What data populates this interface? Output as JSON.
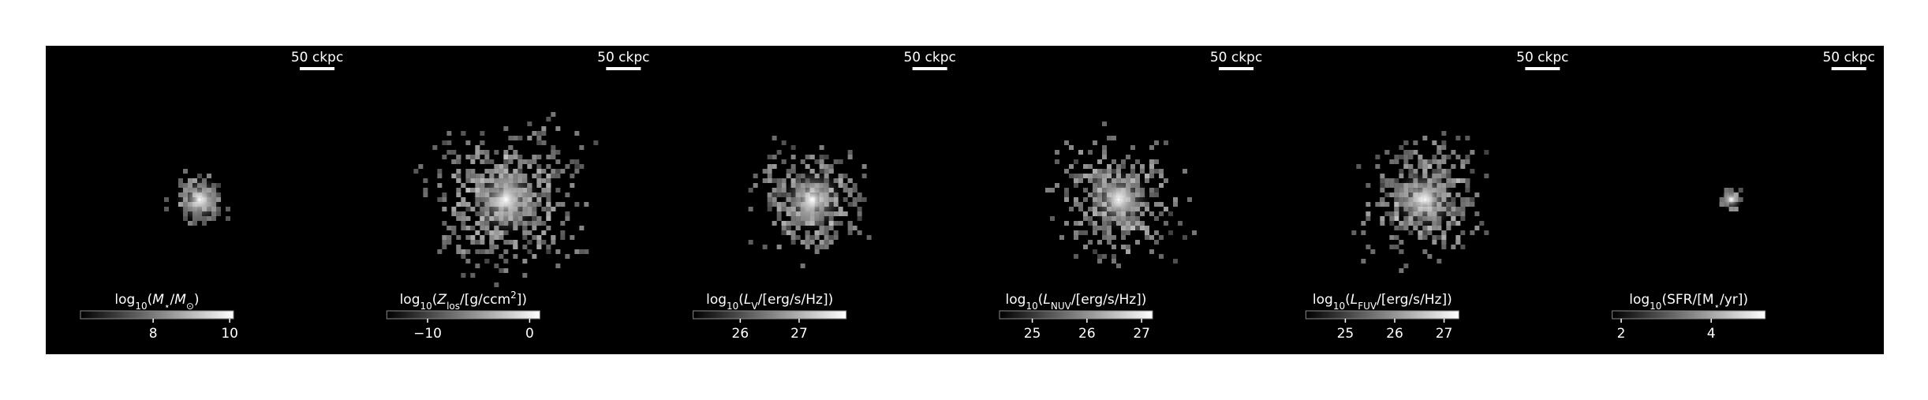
{
  "panels": [
    {
      "scale_label": "50 ckpc",
      "colorbar_label": [
        {
          "t": "log"
        },
        {
          "t": "10",
          "sub": true
        },
        {
          "t": "("
        },
        {
          "t": "M",
          "i": true
        },
        {
          "t": "⋆",
          "sub": true
        },
        {
          "t": "/"
        },
        {
          "t": "M",
          "i": true
        },
        {
          "t": "⊙",
          "sub": true
        },
        {
          "t": ")"
        }
      ],
      "colorbar_lim": [
        6.1,
        10.1
      ],
      "colorbar_ticks": [
        8,
        10
      ]
    },
    {
      "scale_label": "50 ckpc",
      "colorbar_label": [
        {
          "t": "log"
        },
        {
          "t": "10",
          "sub": true
        },
        {
          "t": "("
        },
        {
          "t": "Z",
          "i": true
        },
        {
          "t": "los",
          "sub": true
        },
        {
          "t": "/[g/ccm"
        },
        {
          "t": "2",
          "sup": true
        },
        {
          "t": "])"
        }
      ],
      "colorbar_lim": [
        -14,
        1
      ],
      "colorbar_ticks": [
        {
          "value": -10,
          "label": "−10"
        },
        0
      ]
    },
    {
      "scale_label": "50 ckpc",
      "colorbar_label": [
        {
          "t": "log"
        },
        {
          "t": "10",
          "sub": true
        },
        {
          "t": "("
        },
        {
          "t": "L",
          "i": true
        },
        {
          "t": "V",
          "sub": true
        },
        {
          "t": "/[erg/s/Hz])"
        }
      ],
      "colorbar_lim": [
        25.2,
        27.8
      ],
      "colorbar_ticks": [
        26,
        27
      ]
    },
    {
      "scale_label": "50 ckpc",
      "colorbar_label": [
        {
          "t": "log"
        },
        {
          "t": "10",
          "sub": true
        },
        {
          "t": "("
        },
        {
          "t": "L",
          "i": true
        },
        {
          "t": "NUV",
          "sub": true
        },
        {
          "t": "/[erg/s/Hz])"
        }
      ],
      "colorbar_lim": [
        24.4,
        27.2
      ],
      "colorbar_ticks": [
        25,
        26,
        27
      ]
    },
    {
      "scale_label": "50 ckpc",
      "colorbar_label": [
        {
          "t": "log"
        },
        {
          "t": "10",
          "sub": true
        },
        {
          "t": "("
        },
        {
          "t": "L",
          "i": true
        },
        {
          "t": "FUV",
          "sub": true
        },
        {
          "t": "/[erg/s/Hz])"
        }
      ],
      "colorbar_lim": [
        24.2,
        27.3
      ],
      "colorbar_ticks": [
        25,
        26,
        27
      ]
    },
    {
      "scale_label": "50 ckpc",
      "colorbar_label": [
        {
          "t": "log"
        },
        {
          "t": "10",
          "sub": true
        },
        {
          "t": "(SFR/[M"
        },
        {
          "t": "⋆",
          "sub": true
        },
        {
          "t": "/yr])"
        }
      ],
      "colorbar_lim": [
        1.8,
        5.2
      ],
      "colorbar_ticks": [
        2,
        4
      ]
    }
  ]
}
